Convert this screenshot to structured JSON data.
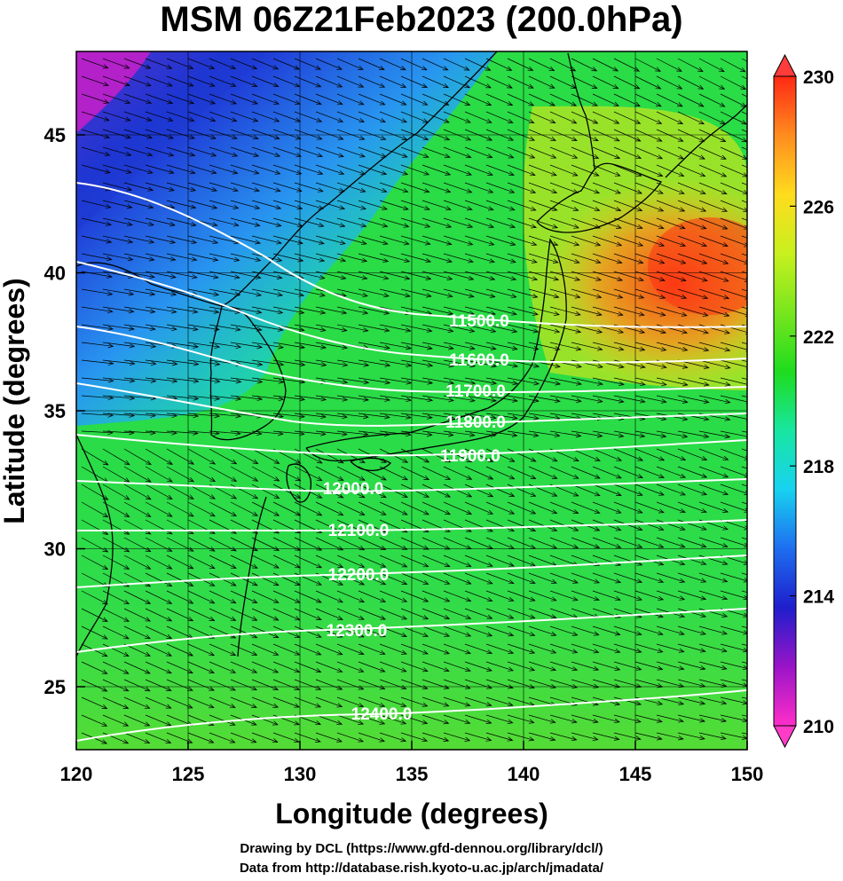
{
  "title": "MSM 06Z21Feb2023 (200.0hPa)",
  "x_axis": {
    "label": "Longitude (degrees)",
    "ticks": [
      "120",
      "125",
      "130",
      "135",
      "140",
      "145",
      "150"
    ]
  },
  "y_axis": {
    "label": "Latitude  (degrees)",
    "ticks": [
      "25",
      "30",
      "35",
      "40",
      "45"
    ]
  },
  "colorbar": {
    "ticks": [
      "210",
      "214",
      "218",
      "222",
      "226",
      "230"
    ],
    "min": 210,
    "max": 230,
    "colors": [
      "#ff2ec8",
      "#9a14c8",
      "#1e1ecc",
      "#1e6ef0",
      "#18d2f0",
      "#18e6a0",
      "#1edc1e",
      "#78e61e",
      "#c8f01e",
      "#ffdc1e",
      "#ff8c1e",
      "#ff2814"
    ]
  },
  "contours": {
    "line_color": "#ffffff",
    "labels": [
      "11500.0",
      "11600.0",
      "11700.0",
      "11800.0",
      "11900.0",
      "12000.0",
      "12100.0",
      "12200.0",
      "12300.0",
      "12400.0"
    ]
  },
  "credits": {
    "line1": "Drawing by DCL (https://www.gfd-dennou.org/library/dcl/)",
    "line2": "Data from http://database.rish.kyoto-u.ac.jp/arch/jmadata/"
  }
}
